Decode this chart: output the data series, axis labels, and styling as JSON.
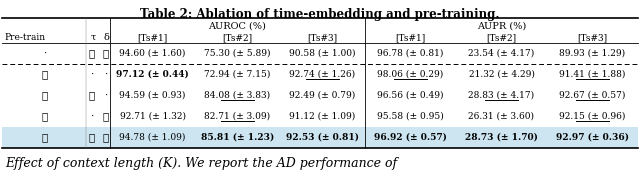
{
  "title": "Table 2: Ablation of time-embedding and pre-training.",
  "footer": "Effect of context length (K). We report the AD performance of",
  "rows": [
    {
      "pretrain": "·",
      "tau": "✓",
      "delta": "✓",
      "vals": [
        "94.60 (± 1.60)",
        "75.30 (± 5.89)",
        "90.58 (± 1.00)",
        "96.78 (± 0.81)",
        "23.54 (± 4.17)",
        "89.93 (± 1.29)"
      ],
      "bold": [],
      "underline": [],
      "dashed_below": true,
      "bg": "white"
    },
    {
      "pretrain": "✓",
      "tau": "·",
      "delta": "·",
      "vals": [
        "97.12 (± 0.44)",
        "72.94 (± 7.15)",
        "92.74 (± 1.26)",
        "98.06 (± 0.29)",
        "21.32 (± 4.29)",
        "91.41 (± 1.88)"
      ],
      "bold": [
        0
      ],
      "underline": [
        2,
        3,
        5
      ],
      "dashed_below": false,
      "bg": "white"
    },
    {
      "pretrain": "✓",
      "tau": "✓",
      "delta": "·",
      "vals": [
        "94.59 (± 0.93)",
        "84.08 (± 3.83)",
        "92.49 (± 0.79)",
        "96.56 (± 0.49)",
        "28.83 (± 4.17)",
        "92.67 (± 0.57)"
      ],
      "bold": [],
      "underline": [
        1,
        4,
        5
      ],
      "dashed_below": false,
      "bg": "white"
    },
    {
      "pretrain": "✓",
      "tau": "·",
      "delta": "✓",
      "vals": [
        "92.71 (± 1.32)",
        "82.71 (± 3.09)",
        "91.12 (± 1.09)",
        "95.58 (± 0.95)",
        "26.31 (± 3.60)",
        "92.15 (± 0.96)"
      ],
      "bold": [],
      "underline": [
        1,
        5
      ],
      "dashed_below": false,
      "bg": "white"
    },
    {
      "pretrain": "✓",
      "tau": "✓",
      "delta": "✓",
      "vals": [
        "94.78 (± 1.09)",
        "85.81 (± 1.23)",
        "92.53 (± 0.81)",
        "96.92 (± 0.57)",
        "28.73 (± 1.70)",
        "92.97 (± 0.36)"
      ],
      "bold": [
        1,
        2,
        3,
        4,
        5
      ],
      "underline": [],
      "dashed_below": false,
      "bg": "#cce5f0"
    }
  ]
}
